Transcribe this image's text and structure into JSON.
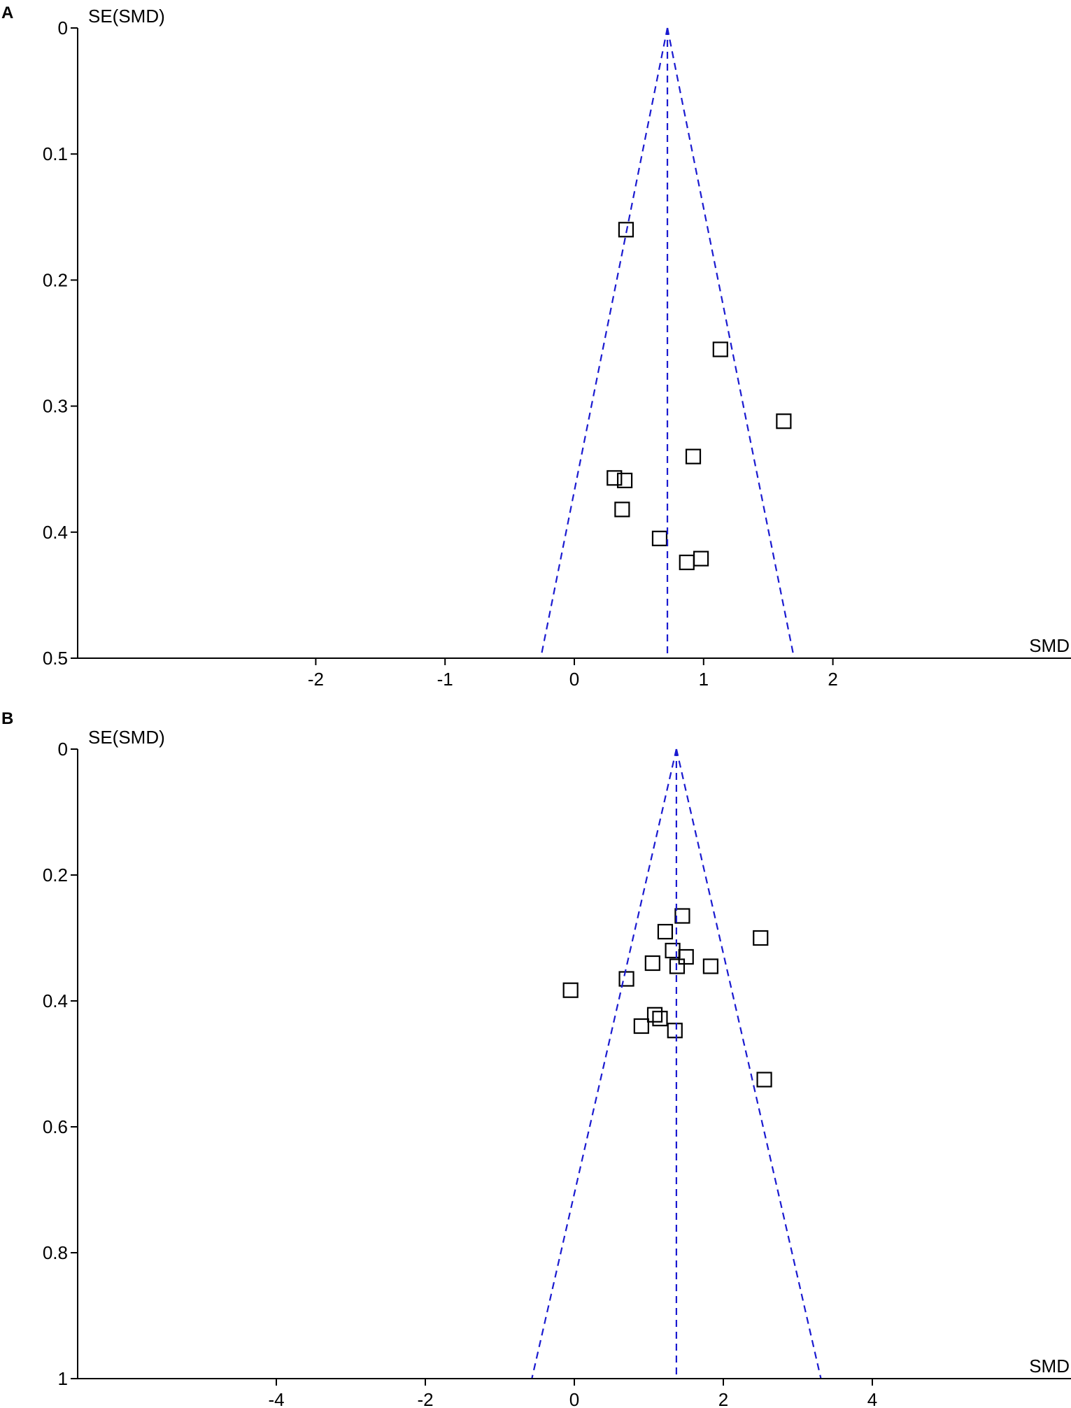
{
  "chart_data": [
    {
      "type": "scatter",
      "panel_label": "A",
      "xlabel": "SMD",
      "ylabel": "SE(SMD)",
      "x_ticks": [
        -2,
        -1,
        0,
        1,
        2
      ],
      "x_tick_labels": [
        "-2",
        "-1",
        "0",
        "1",
        "2"
      ],
      "y_ticks": [
        0,
        0.1,
        0.2,
        0.3,
        0.4,
        0.5
      ],
      "y_tick_labels": [
        "0",
        "0.1",
        "0.2",
        "0.3",
        "0.4",
        "0.5"
      ],
      "ylim": [
        0,
        0.5
      ],
      "y_reversed": true,
      "pooled_smd": 0.72,
      "funnel_base": [
        -0.26,
        1.7
      ],
      "points": [
        {
          "x": 0.4,
          "y": 0.16
        },
        {
          "x": 1.13,
          "y": 0.255
        },
        {
          "x": 1.62,
          "y": 0.312
        },
        {
          "x": 0.92,
          "y": 0.34
        },
        {
          "x": 0.31,
          "y": 0.357
        },
        {
          "x": 0.39,
          "y": 0.359
        },
        {
          "x": 0.37,
          "y": 0.382
        },
        {
          "x": 0.66,
          "y": 0.405
        },
        {
          "x": 0.98,
          "y": 0.421
        },
        {
          "x": 0.87,
          "y": 0.424
        }
      ]
    },
    {
      "type": "scatter",
      "panel_label": "B",
      "xlabel": "SMD",
      "ylabel": "SE(SMD)",
      "x_ticks": [
        -4,
        -2,
        0,
        2,
        4
      ],
      "x_tick_labels": [
        "-4",
        "-2",
        "0",
        "2",
        "4"
      ],
      "y_ticks": [
        0,
        0.2,
        0.4,
        0.6,
        0.8,
        1
      ],
      "y_tick_labels": [
        "0",
        "0.2",
        "0.4",
        "0.6",
        "0.8",
        "1"
      ],
      "ylim": [
        0,
        1
      ],
      "y_reversed": true,
      "pooled_smd": 1.37,
      "funnel_base": [
        -0.57,
        3.31
      ],
      "points": [
        {
          "x": 1.45,
          "y": 0.265
        },
        {
          "x": 1.22,
          "y": 0.29
        },
        {
          "x": 2.5,
          "y": 0.3
        },
        {
          "x": 1.32,
          "y": 0.32
        },
        {
          "x": 1.5,
          "y": 0.33
        },
        {
          "x": 1.05,
          "y": 0.34
        },
        {
          "x": 1.38,
          "y": 0.345
        },
        {
          "x": 1.83,
          "y": 0.345
        },
        {
          "x": 0.7,
          "y": 0.365
        },
        {
          "x": -0.05,
          "y": 0.383
        },
        {
          "x": 1.08,
          "y": 0.422
        },
        {
          "x": 1.15,
          "y": 0.428
        },
        {
          "x": 0.9,
          "y": 0.44
        },
        {
          "x": 1.35,
          "y": 0.447
        },
        {
          "x": 2.55,
          "y": 0.525
        }
      ]
    }
  ]
}
